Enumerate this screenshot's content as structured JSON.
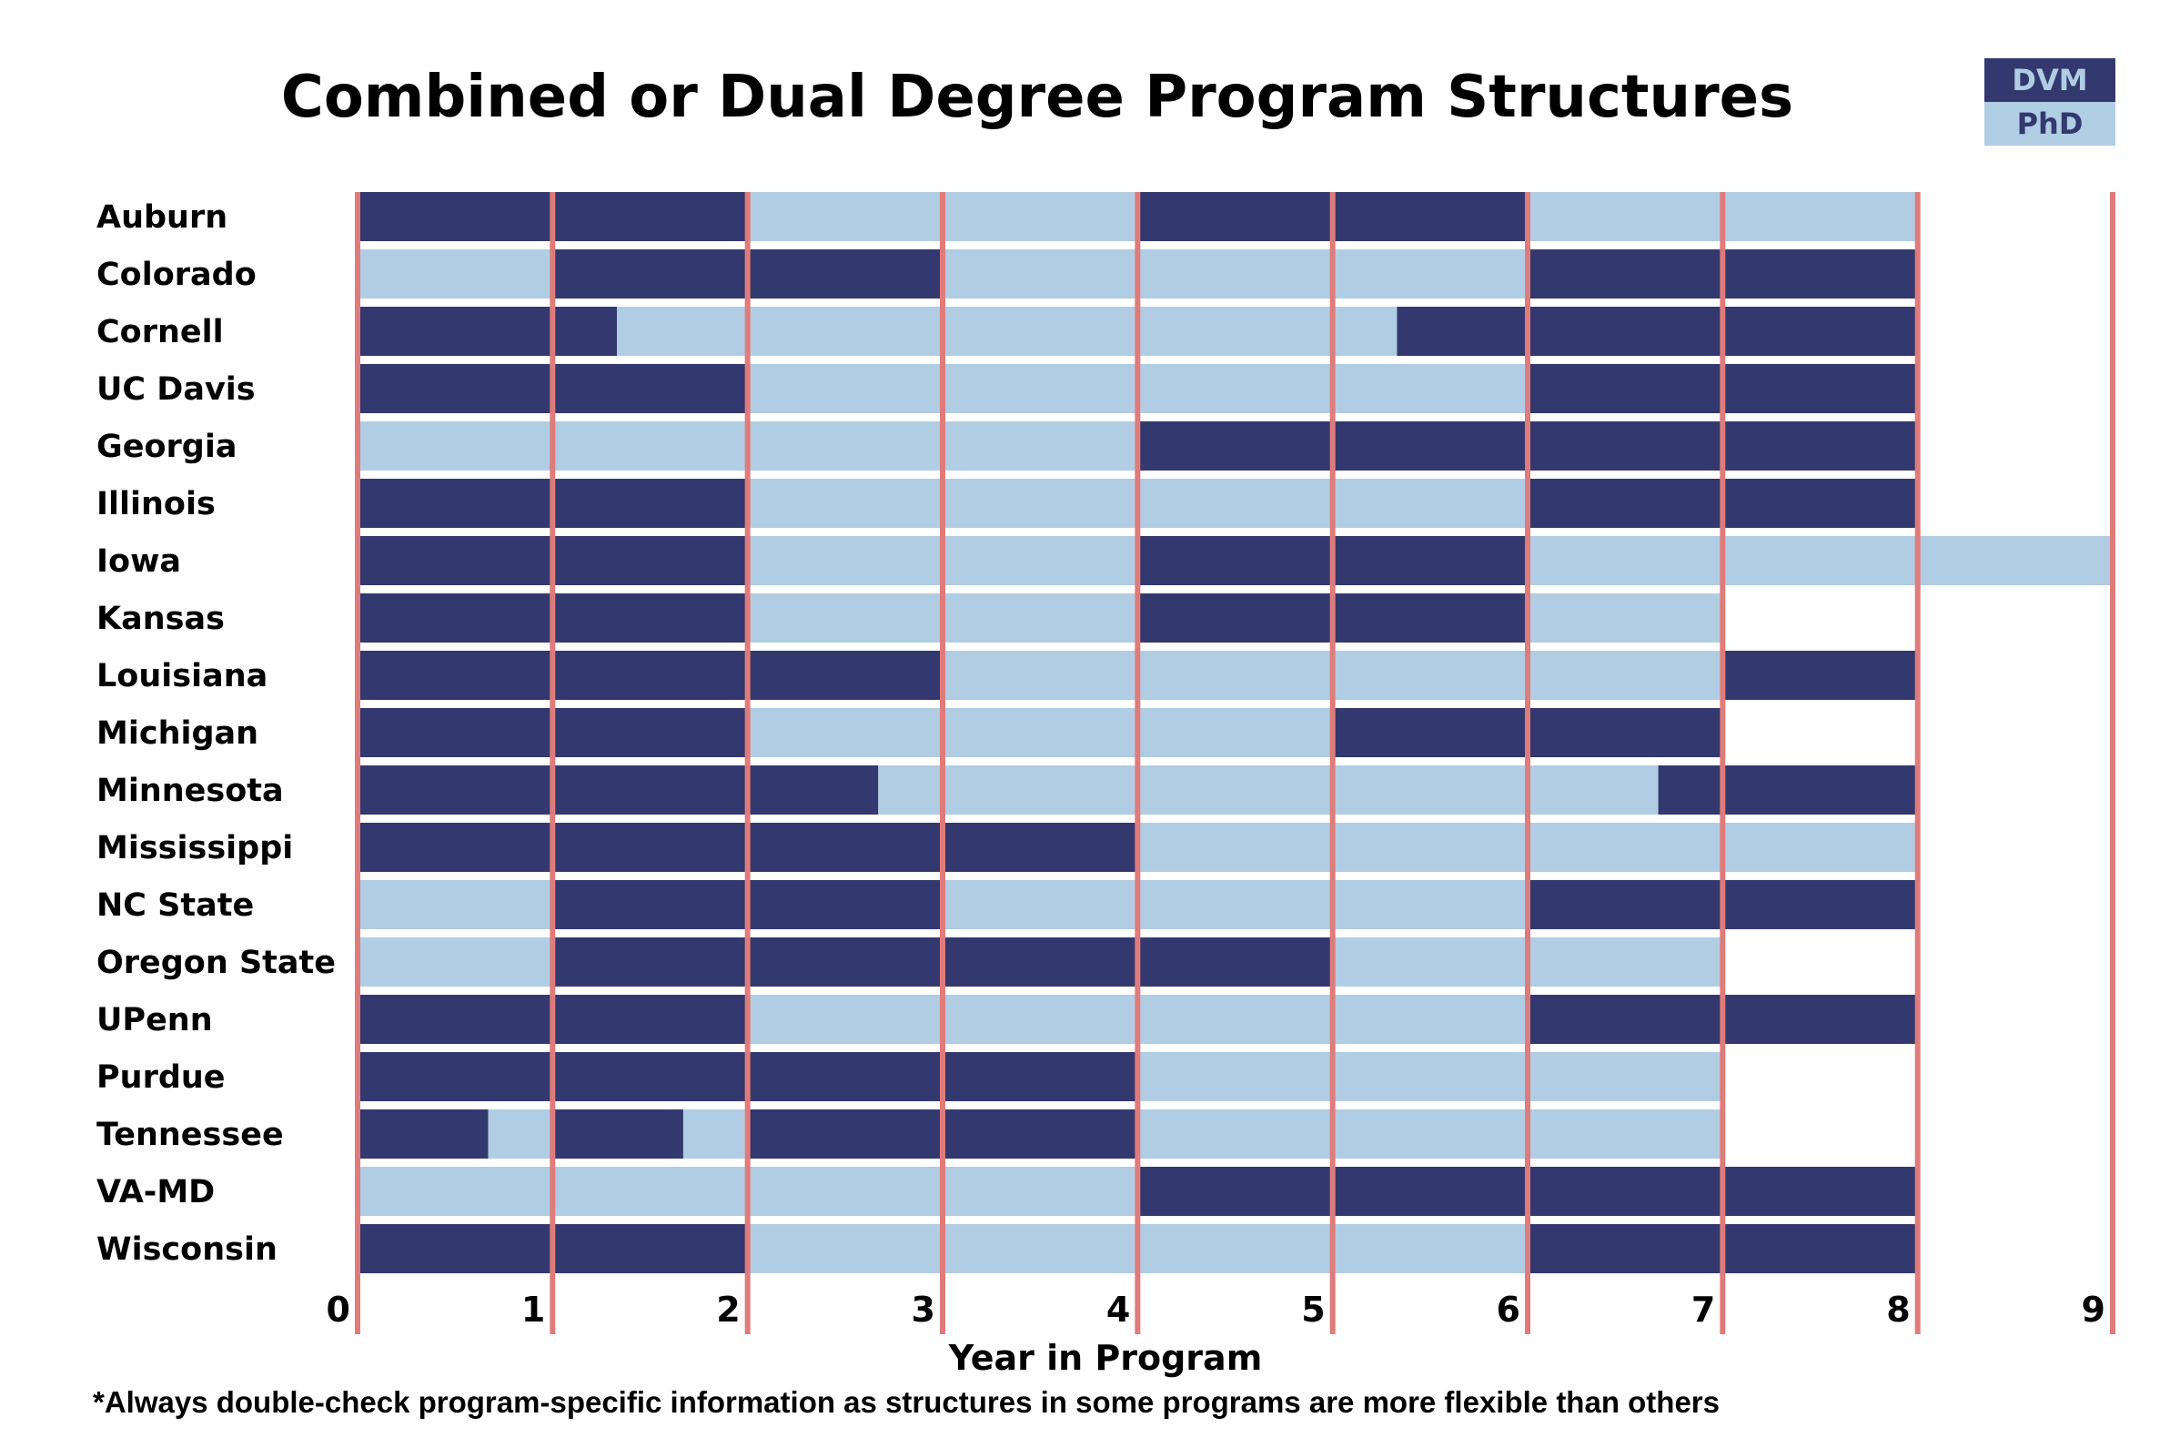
{
  "title": "Combined or Dual Degree Program Structures",
  "legend": [
    {
      "label": "DVM",
      "color": "#33396e"
    },
    {
      "label": "PhD",
      "color": "#b0cde3"
    }
  ],
  "colors": {
    "DVM": "#33396e",
    "PhD": "#b0cde3",
    "gridline": "#e07b7b"
  },
  "xlabel": "Year in Program",
  "footnote": "*Always double-check program-specific information as structures in some programs are more flexible than others",
  "chart_data": {
    "type": "bar",
    "orientation": "horizontal",
    "stacked_segments": true,
    "title": "Combined or Dual Degree Program Structures",
    "xlabel": "Year in Program",
    "ylabel": "",
    "xlim": [
      0,
      9
    ],
    "xticks": [
      "0",
      "1",
      "2",
      "3",
      "4",
      "5",
      "6",
      "7",
      "8",
      "9"
    ],
    "grid": "vertical lines at each year",
    "legend": {
      "placement": "top-right",
      "entries": [
        "DVM",
        "PhD"
      ]
    },
    "categories": [
      "Auburn",
      "Colorado",
      "Cornell",
      "UC Davis",
      "Georgia",
      "Illinois",
      "Iowa",
      "Kansas",
      "Louisiana",
      "Michigan",
      "Minnesota",
      "Mississippi",
      "NC State",
      "Oregon State",
      "UPenn",
      "Purdue",
      "Tennessee",
      "VA-MD",
      "Wisconsin"
    ],
    "programs": [
      {
        "name": "Auburn",
        "segments": [
          {
            "start": 0,
            "end": 2,
            "type": "DVM"
          },
          {
            "start": 2,
            "end": 4,
            "type": "PhD"
          },
          {
            "start": 4,
            "end": 6,
            "type": "DVM"
          },
          {
            "start": 6,
            "end": 8,
            "type": "PhD"
          }
        ]
      },
      {
        "name": "Colorado",
        "segments": [
          {
            "start": 0,
            "end": 1,
            "type": "PhD"
          },
          {
            "start": 1,
            "end": 3,
            "type": "DVM"
          },
          {
            "start": 3,
            "end": 6,
            "type": "PhD"
          },
          {
            "start": 6,
            "end": 8,
            "type": "DVM"
          }
        ]
      },
      {
        "name": "Cornell",
        "segments": [
          {
            "start": 0,
            "end": 1.33,
            "type": "DVM"
          },
          {
            "start": 1.33,
            "end": 5.33,
            "type": "PhD"
          },
          {
            "start": 5.33,
            "end": 8,
            "type": "DVM"
          }
        ]
      },
      {
        "name": "UC Davis",
        "segments": [
          {
            "start": 0,
            "end": 2,
            "type": "DVM"
          },
          {
            "start": 2,
            "end": 6,
            "type": "PhD"
          },
          {
            "start": 6,
            "end": 8,
            "type": "DVM"
          }
        ]
      },
      {
        "name": "Georgia",
        "segments": [
          {
            "start": 0,
            "end": 4,
            "type": "PhD"
          },
          {
            "start": 4,
            "end": 8,
            "type": "DVM"
          }
        ]
      },
      {
        "name": "Illinois",
        "segments": [
          {
            "start": 0,
            "end": 2,
            "type": "DVM"
          },
          {
            "start": 2,
            "end": 6,
            "type": "PhD"
          },
          {
            "start": 6,
            "end": 8,
            "type": "DVM"
          }
        ]
      },
      {
        "name": "Iowa",
        "segments": [
          {
            "start": 0,
            "end": 2,
            "type": "DVM"
          },
          {
            "start": 2,
            "end": 4,
            "type": "PhD"
          },
          {
            "start": 4,
            "end": 6,
            "type": "DVM"
          },
          {
            "start": 6,
            "end": 9,
            "type": "PhD"
          }
        ]
      },
      {
        "name": "Kansas",
        "segments": [
          {
            "start": 0,
            "end": 2,
            "type": "DVM"
          },
          {
            "start": 2,
            "end": 4,
            "type": "PhD"
          },
          {
            "start": 4,
            "end": 6,
            "type": "DVM"
          },
          {
            "start": 6,
            "end": 7,
            "type": "PhD"
          }
        ]
      },
      {
        "name": "Louisiana",
        "segments": [
          {
            "start": 0,
            "end": 3,
            "type": "DVM"
          },
          {
            "start": 3,
            "end": 7,
            "type": "PhD"
          },
          {
            "start": 7,
            "end": 8,
            "type": "DVM"
          }
        ]
      },
      {
        "name": "Michigan",
        "segments": [
          {
            "start": 0,
            "end": 2,
            "type": "DVM"
          },
          {
            "start": 2,
            "end": 5,
            "type": "PhD"
          },
          {
            "start": 5,
            "end": 7,
            "type": "DVM"
          }
        ]
      },
      {
        "name": "Minnesota",
        "segments": [
          {
            "start": 0,
            "end": 2.67,
            "type": "DVM"
          },
          {
            "start": 2.67,
            "end": 6.67,
            "type": "PhD"
          },
          {
            "start": 6.67,
            "end": 8,
            "type": "DVM"
          }
        ]
      },
      {
        "name": "Mississippi",
        "segments": [
          {
            "start": 0,
            "end": 4,
            "type": "DVM"
          },
          {
            "start": 4,
            "end": 8,
            "type": "PhD"
          }
        ]
      },
      {
        "name": "NC State",
        "segments": [
          {
            "start": 0,
            "end": 1,
            "type": "PhD"
          },
          {
            "start": 1,
            "end": 3,
            "type": "DVM"
          },
          {
            "start": 3,
            "end": 6,
            "type": "PhD"
          },
          {
            "start": 6,
            "end": 8,
            "type": "DVM"
          }
        ]
      },
      {
        "name": "Oregon State",
        "segments": [
          {
            "start": 0,
            "end": 1,
            "type": "PhD"
          },
          {
            "start": 1,
            "end": 5,
            "type": "DVM"
          },
          {
            "start": 5,
            "end": 7,
            "type": "PhD"
          }
        ]
      },
      {
        "name": "UPenn",
        "segments": [
          {
            "start": 0,
            "end": 2,
            "type": "DVM"
          },
          {
            "start": 2,
            "end": 6,
            "type": "PhD"
          },
          {
            "start": 6,
            "end": 8,
            "type": "DVM"
          }
        ]
      },
      {
        "name": "Purdue",
        "segments": [
          {
            "start": 0,
            "end": 4,
            "type": "DVM"
          },
          {
            "start": 4,
            "end": 7,
            "type": "PhD"
          }
        ]
      },
      {
        "name": "Tennessee",
        "segments": [
          {
            "start": 0,
            "end": 0.67,
            "type": "DVM"
          },
          {
            "start": 0.67,
            "end": 1,
            "type": "PhD"
          },
          {
            "start": 1,
            "end": 1.67,
            "type": "DVM"
          },
          {
            "start": 1.67,
            "end": 2,
            "type": "PhD"
          },
          {
            "start": 2,
            "end": 4,
            "type": "DVM"
          },
          {
            "start": 4,
            "end": 7,
            "type": "PhD"
          }
        ]
      },
      {
        "name": "VA-MD",
        "segments": [
          {
            "start": 0,
            "end": 4,
            "type": "PhD"
          },
          {
            "start": 4,
            "end": 8,
            "type": "DVM"
          }
        ]
      },
      {
        "name": "Wisconsin",
        "segments": [
          {
            "start": 0,
            "end": 2,
            "type": "DVM"
          },
          {
            "start": 2,
            "end": 6,
            "type": "PhD"
          },
          {
            "start": 6,
            "end": 8,
            "type": "DVM"
          }
        ]
      }
    ]
  }
}
